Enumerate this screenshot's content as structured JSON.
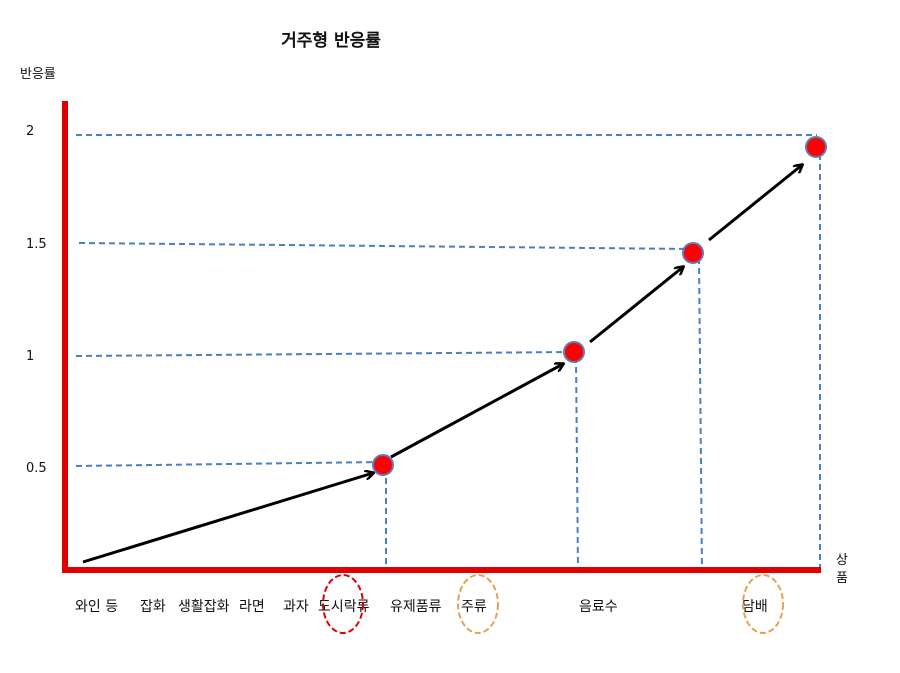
{
  "diagram": {
    "title": "거주형 반응률",
    "y_axis_title": "반응률",
    "x_axis_title_line1": "상",
    "x_axis_title_line2": "품",
    "y_ticks": [
      "2",
      "1.5",
      "1",
      "0.5"
    ],
    "categories": {
      "c1": "와인 등",
      "c2": "잡화",
      "c3": "생활잡화",
      "c4": "라면",
      "c5": "과자",
      "c6": "도시락류",
      "c7": "유제품류",
      "c8": "주류",
      "c9": "음료수",
      "c10": "담배"
    },
    "points": [
      {
        "label": "도시락류",
        "value": 0.5
      },
      {
        "label": "음료수",
        "value": 1
      },
      {
        "label": "담배-left",
        "value": 1.5
      },
      {
        "label": "담배",
        "value": 2
      }
    ],
    "colors": {
      "axis": "#e00000",
      "guide": "#4a7fc1",
      "arrow": "#000000",
      "point_fill": "#ff0000",
      "point_stroke": "#5b7db8",
      "highlight_red": "#e00000",
      "highlight_orange": "#e8a050"
    }
  }
}
